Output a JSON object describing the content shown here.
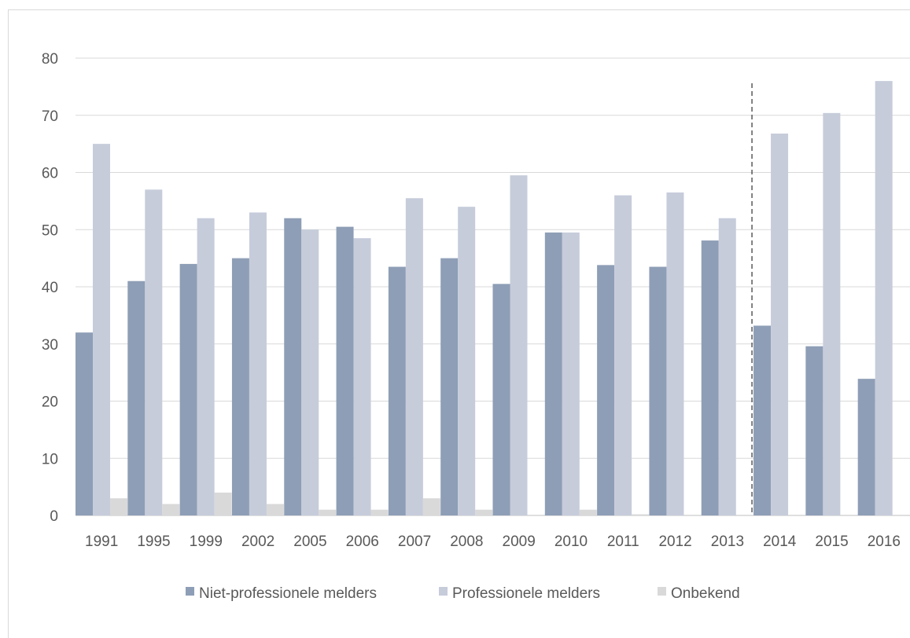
{
  "chart_data": {
    "type": "bar",
    "categories": [
      "1991",
      "1995",
      "1999",
      "2002",
      "2005",
      "2006",
      "2007",
      "2008",
      "2009",
      "2010",
      "2011",
      "2012",
      "2013",
      "2014",
      "2015",
      "2016"
    ],
    "series": [
      {
        "name": "Niet-professionele melders",
        "color": "#8e9eb6",
        "values": [
          32,
          41,
          44,
          45,
          52,
          50.5,
          43.5,
          45,
          40.5,
          49.5,
          43.8,
          43.5,
          48.1,
          33.2,
          29.6,
          23.9
        ]
      },
      {
        "name": "Professionele melders",
        "color": "#c6ccda",
        "values": [
          65,
          57,
          52,
          53,
          50,
          48.5,
          55.5,
          54,
          59.5,
          49.5,
          56,
          56.5,
          52,
          66.8,
          70.4,
          76
        ]
      },
      {
        "name": "Onbekend",
        "color": "#d9d9d9",
        "values": [
          3,
          2,
          4,
          2,
          1,
          1,
          3,
          1,
          0,
          1,
          0.2,
          0,
          0,
          0,
          0,
          0
        ]
      }
    ],
    "yticks": [
      "0",
      "10",
      "20",
      "30",
      "40",
      "50",
      "60",
      "70",
      "80"
    ],
    "ylim": [
      0,
      80
    ],
    "grid": true,
    "legend_position": "bottom",
    "separator_after_category": "2013",
    "title": "",
    "xlabel": "",
    "ylabel": ""
  }
}
